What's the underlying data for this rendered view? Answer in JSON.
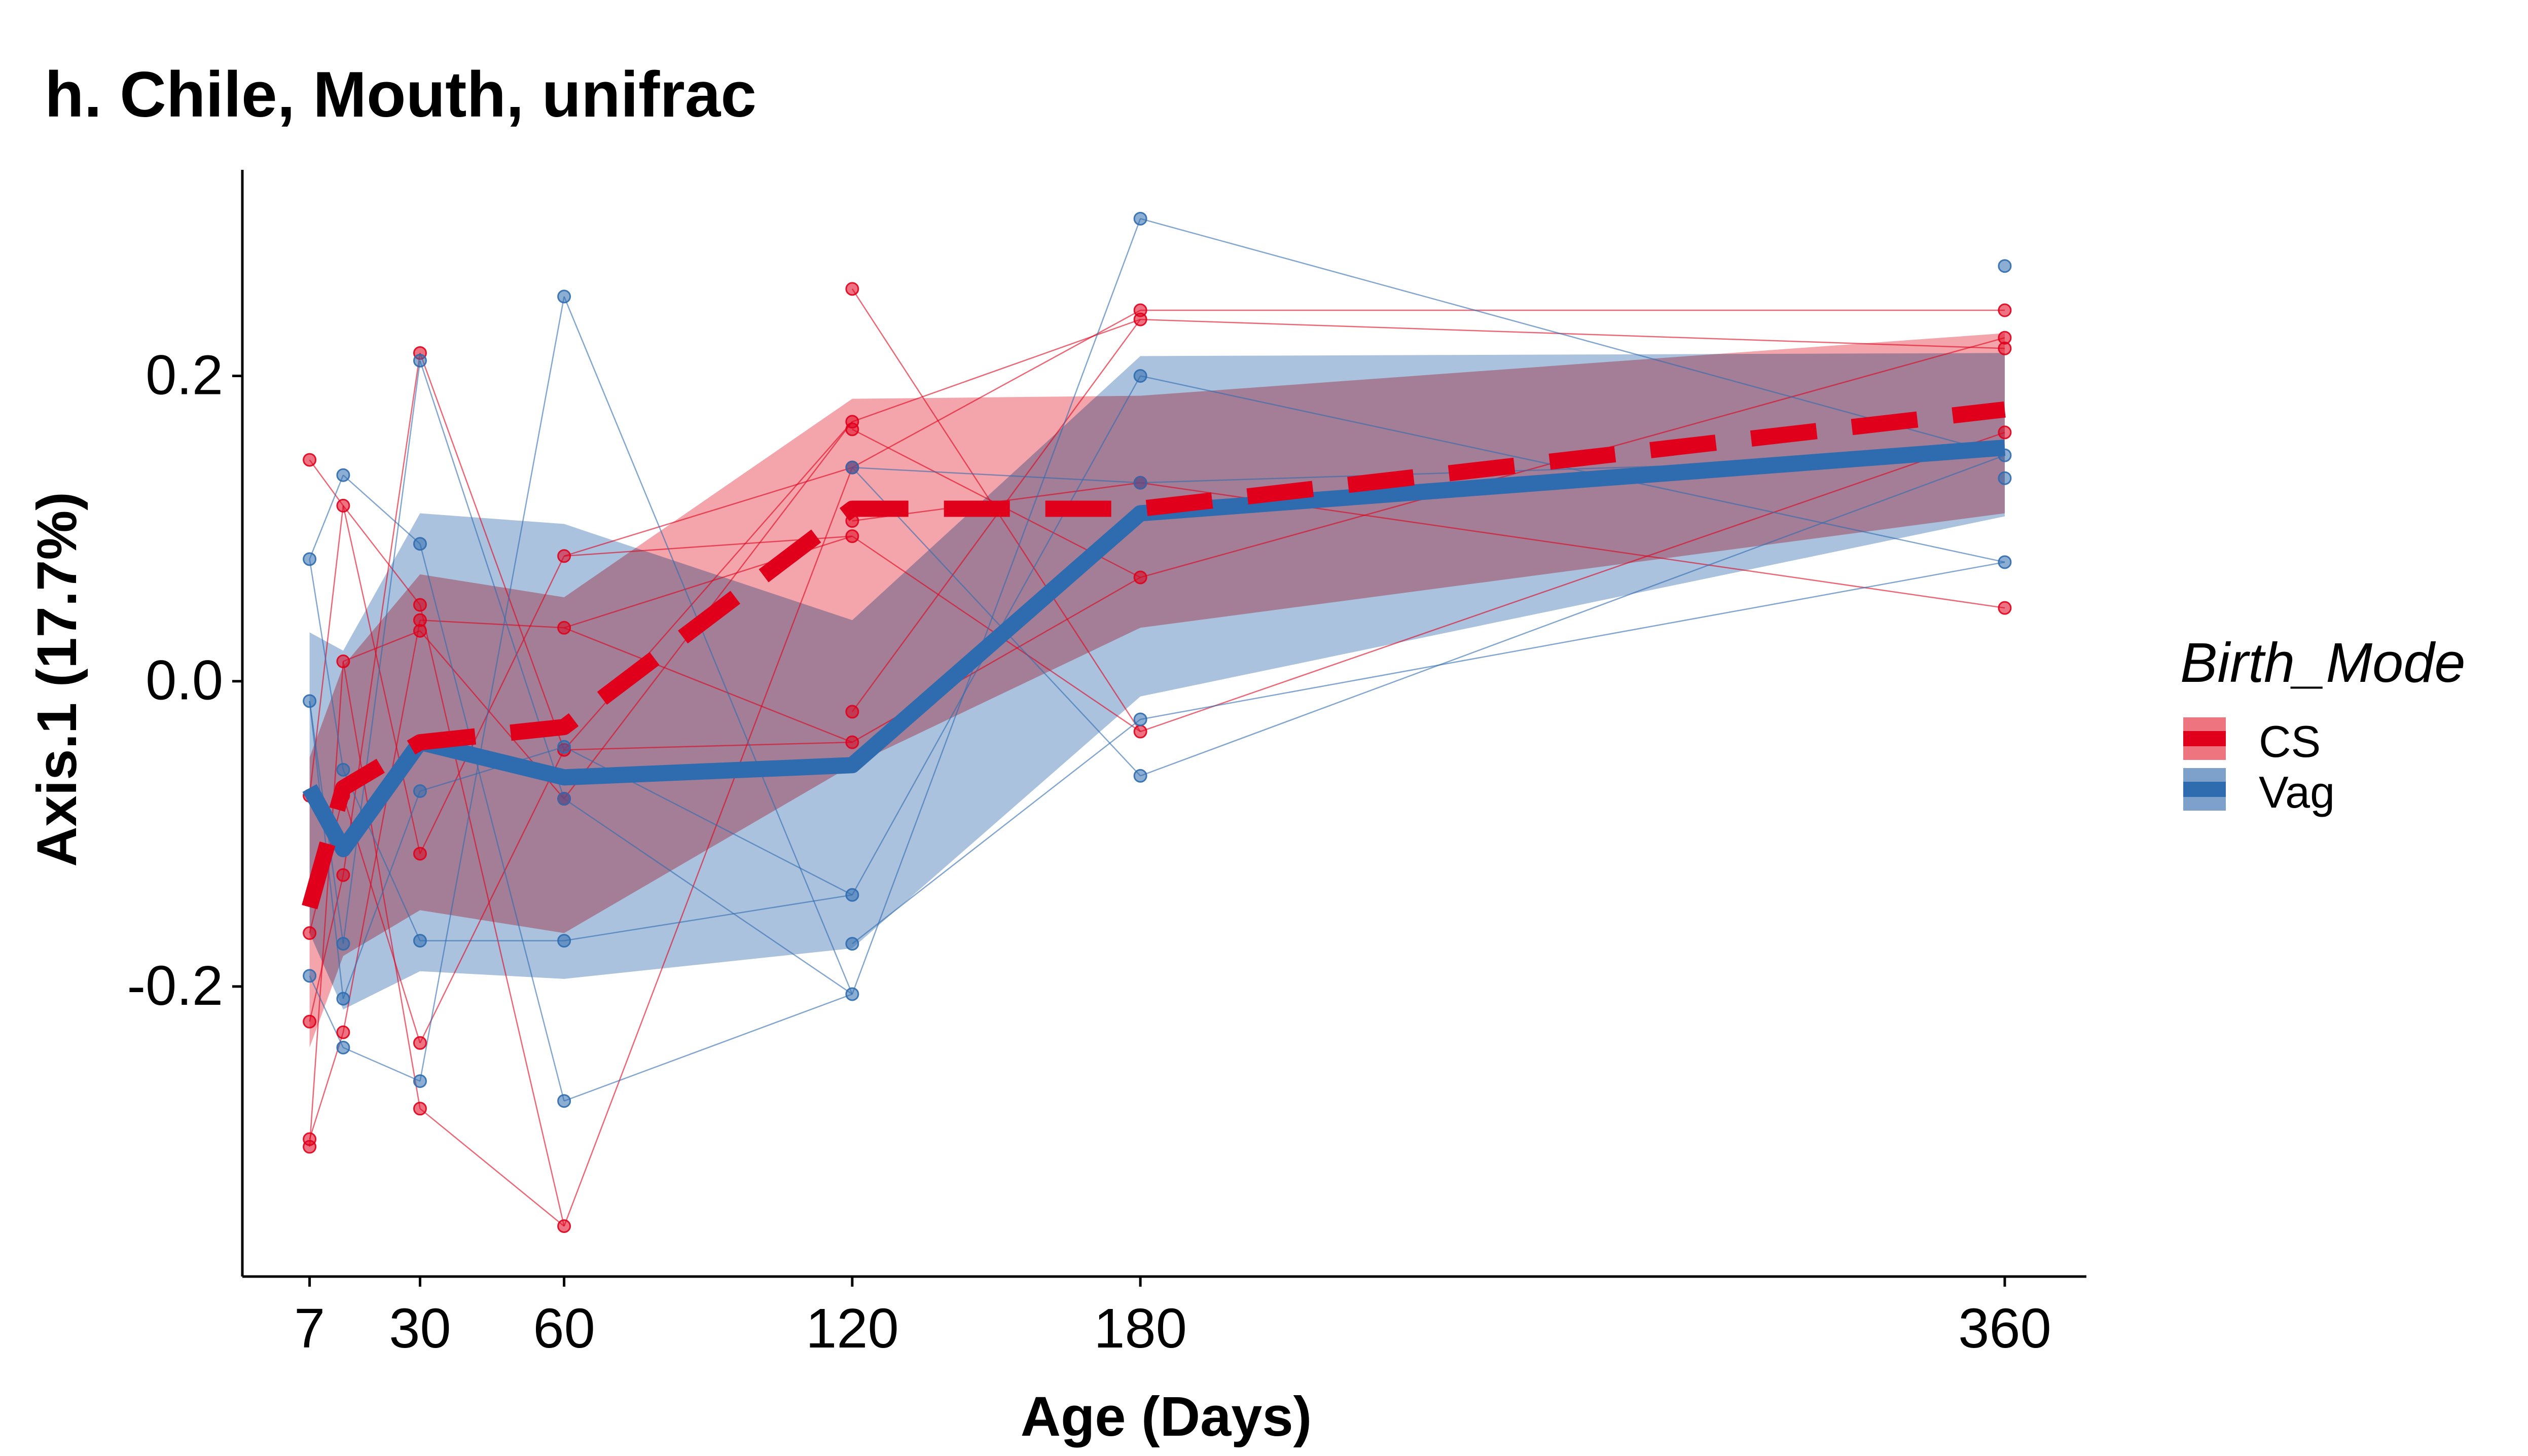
{
  "chart_data": {
    "type": "line",
    "title": "h. Chile, Mouth, unifrac",
    "xlabel": "Age (Days)",
    "ylabel": "Axis.1 (17.7%)",
    "xlim": [
      -7,
      377
    ],
    "ylim": [
      -0.39,
      0.335
    ],
    "x_ticks": [
      7,
      30,
      60,
      120,
      180,
      360
    ],
    "x_tick_labels": [
      "7",
      "30",
      "60",
      "120",
      "180",
      "360"
    ],
    "y_ticks": [
      -0.2,
      0.0,
      0.2
    ],
    "y_tick_labels": [
      "-0.2",
      "0.0",
      "0.2"
    ],
    "grid": false,
    "legend": {
      "title": "Birth_Mode",
      "position": "right",
      "entries": [
        "CS",
        "Vag"
      ]
    },
    "colors": {
      "CS": "#E0001B",
      "Vag": "#2E6BAF",
      "CS_band": "#EE7580",
      "Vag_band": "#7EA1CC"
    },
    "series": [
      {
        "name": "CS",
        "style": "dashed",
        "x": [
          7,
          14,
          30,
          60,
          120,
          180,
          360
        ],
        "mean": [
          -0.148,
          -0.07,
          -0.04,
          -0.03,
          0.113,
          0.113,
          0.178
        ],
        "lower": [
          -0.24,
          -0.18,
          -0.15,
          -0.165,
          -0.055,
          0.035,
          0.11
        ],
        "upper": [
          -0.05,
          0.01,
          0.07,
          0.055,
          0.185,
          0.187,
          0.228
        ],
        "points": [
          [
            7,
            0.145
          ],
          [
            7,
            -0.165
          ],
          [
            7,
            -0.3
          ],
          [
            7,
            -0.305
          ],
          [
            7,
            -0.223
          ],
          [
            7,
            -0.075
          ],
          [
            14,
            0.115
          ],
          [
            14,
            0.013
          ],
          [
            14,
            -0.075
          ],
          [
            14,
            -0.127
          ],
          [
            14,
            -0.23
          ],
          [
            30,
            0.215
          ],
          [
            30,
            0.05
          ],
          [
            30,
            0.04
          ],
          [
            30,
            0.033
          ],
          [
            30,
            -0.113
          ],
          [
            30,
            -0.237
          ],
          [
            30,
            -0.28
          ],
          [
            60,
            0.082
          ],
          [
            60,
            0.035
          ],
          [
            60,
            -0.045
          ],
          [
            60,
            -0.077
          ],
          [
            60,
            -0.357
          ],
          [
            120,
            0.257
          ],
          [
            120,
            0.17
          ],
          [
            120,
            0.165
          ],
          [
            120,
            0.14
          ],
          [
            120,
            0.105
          ],
          [
            120,
            0.095
          ],
          [
            120,
            -0.02
          ],
          [
            120,
            -0.04
          ],
          [
            180,
            0.243
          ],
          [
            180,
            0.237
          ],
          [
            180,
            0.13
          ],
          [
            180,
            0.068
          ],
          [
            180,
            -0.033
          ],
          [
            360,
            0.243
          ],
          [
            360,
            0.225
          ],
          [
            360,
            0.218
          ],
          [
            360,
            0.163
          ],
          [
            360,
            0.048
          ]
        ]
      },
      {
        "name": "Vag",
        "style": "solid",
        "x": [
          7,
          14,
          30,
          60,
          120,
          180,
          360
        ],
        "mean": [
          -0.07,
          -0.11,
          -0.04,
          -0.063,
          -0.055,
          0.11,
          0.153
        ],
        "lower": [
          -0.165,
          -0.215,
          -0.19,
          -0.195,
          -0.175,
          -0.01,
          0.108
        ],
        "upper": [
          0.032,
          0.02,
          0.11,
          0.103,
          0.04,
          0.213,
          0.215
        ],
        "points": [
          [
            7,
            0.08
          ],
          [
            7,
            -0.013
          ],
          [
            7,
            -0.193
          ],
          [
            14,
            0.135
          ],
          [
            14,
            -0.058
          ],
          [
            14,
            -0.172
          ],
          [
            14,
            -0.208
          ],
          [
            14,
            -0.24
          ],
          [
            30,
            0.21
          ],
          [
            30,
            0.09
          ],
          [
            30,
            -0.072
          ],
          [
            30,
            -0.17
          ],
          [
            30,
            -0.262
          ],
          [
            60,
            0.252
          ],
          [
            60,
            -0.043
          ],
          [
            60,
            -0.077
          ],
          [
            60,
            -0.17
          ],
          [
            60,
            -0.275
          ],
          [
            120,
            0.14
          ],
          [
            120,
            -0.14
          ],
          [
            120,
            -0.172
          ],
          [
            120,
            -0.205
          ],
          [
            180,
            0.303
          ],
          [
            180,
            0.2
          ],
          [
            180,
            0.13
          ],
          [
            180,
            -0.025
          ],
          [
            180,
            -0.062
          ],
          [
            360,
            0.272
          ],
          [
            360,
            0.148
          ],
          [
            360,
            0.133
          ],
          [
            360,
            0.078
          ]
        ]
      }
    ]
  }
}
